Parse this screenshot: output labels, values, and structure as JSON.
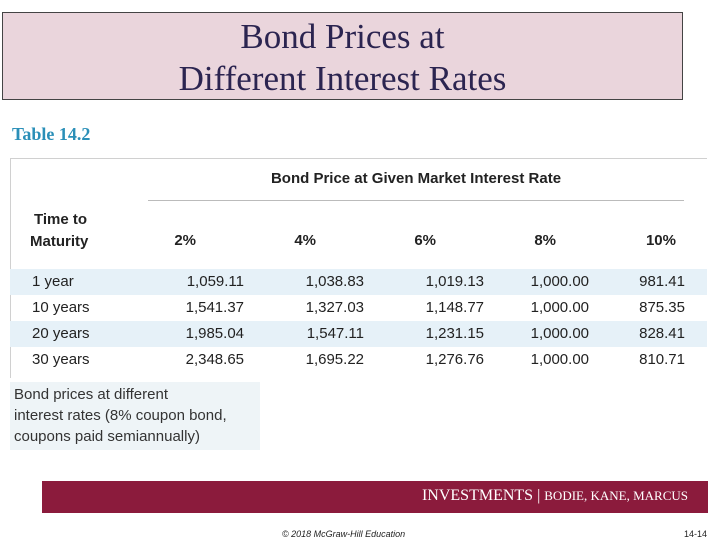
{
  "title": {
    "line1": "Bond Prices at",
    "line2": "Different Interest Rates"
  },
  "table_label": "Table 14.2",
  "table": {
    "group_header": "Bond Price at Given Market Interest Rate",
    "row_header_line1": "Time to",
    "row_header_line2": "Maturity",
    "columns": [
      "2%",
      "4%",
      "6%",
      "8%",
      "10%"
    ],
    "rows": [
      {
        "label": "1 year",
        "values": [
          "1,059.11",
          "1,038.83",
          "1,019.13",
          "1,000.00",
          "981.41"
        ]
      },
      {
        "label": "10 years",
        "values": [
          "1,541.37",
          "1,327.03",
          "1,148.77",
          "1,000.00",
          "875.35"
        ]
      },
      {
        "label": "20 years",
        "values": [
          "1,985.04",
          "1,547.11",
          "1,231.15",
          "1,000.00",
          "828.41"
        ]
      },
      {
        "label": "30 years",
        "values": [
          "2,348.65",
          "1,695.22",
          "1,276.76",
          "1,000.00",
          "810.71"
        ]
      }
    ]
  },
  "caption": {
    "line1": "Bond prices at different",
    "line2": "interest rates (8% coupon bond,",
    "line3": "coupons paid semiannually)"
  },
  "footer": {
    "title": "INVESTMENTS",
    "separator": " | ",
    "authors": "BODIE, KANE, MARCUS"
  },
  "copyright": "© 2018 McGraw-Hill Education",
  "page_number": "14-14"
}
